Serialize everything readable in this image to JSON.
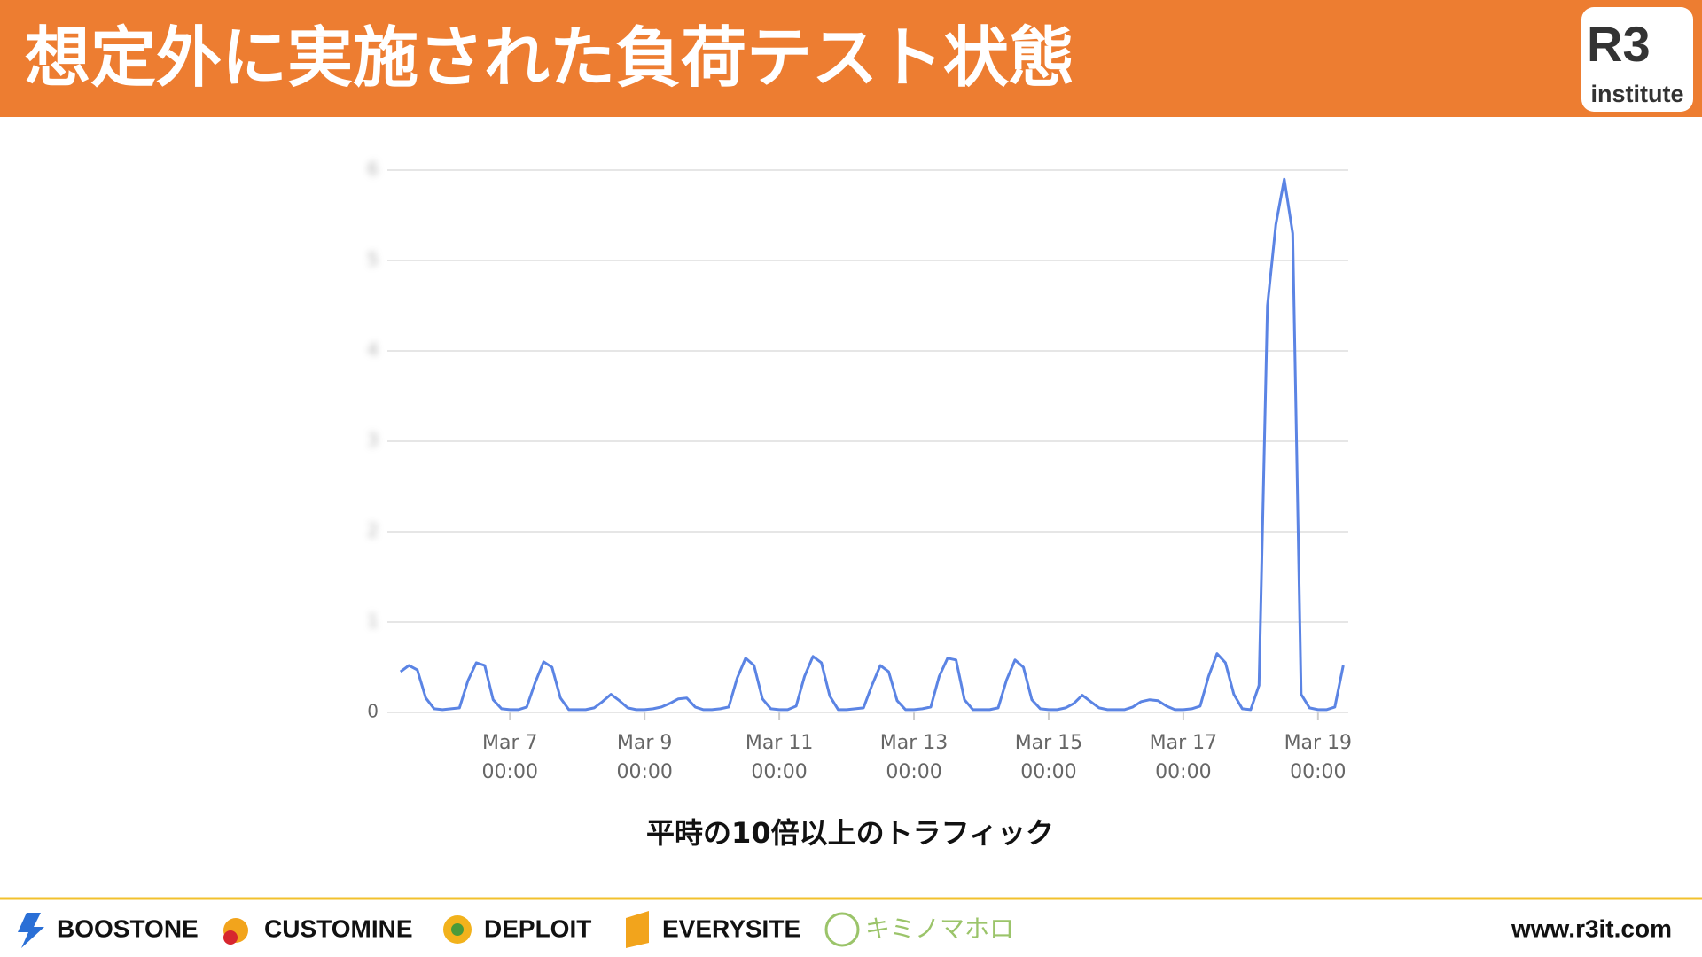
{
  "header": {
    "title": "想定外に実施された負荷テスト状態"
  },
  "logo": {
    "mark": "R3",
    "name": "institute"
  },
  "chart_data": {
    "type": "line",
    "color": "#5b84e4",
    "grid": true,
    "xlim": [
      5.18,
      19.45
    ],
    "ylim": [
      0,
      6
    ],
    "yticks": [
      0,
      1,
      2,
      3,
      4,
      5,
      6
    ],
    "xticks": [
      {
        "value": 7,
        "label": "Mar 7 00:00"
      },
      {
        "value": 9,
        "label": "Mar 9 00:00"
      },
      {
        "value": 11,
        "label": "Mar 11 00:00"
      },
      {
        "value": 13,
        "label": "Mar 13 00:00"
      },
      {
        "value": 15,
        "label": "Mar 15 00:00"
      },
      {
        "value": 17,
        "label": "Mar 17 00:00"
      },
      {
        "value": 19,
        "label": "Mar 19 00:00"
      }
    ],
    "x": [
      5.375,
      5.5,
      5.625,
      5.75,
      5.875,
      6,
      6.125,
      6.25,
      6.375,
      6.5,
      6.625,
      6.75,
      6.875,
      7,
      7.125,
      7.25,
      7.375,
      7.5,
      7.625,
      7.75,
      7.875,
      8,
      8.125,
      8.25,
      8.375,
      8.5,
      8.625,
      8.75,
      8.875,
      9,
      9.125,
      9.25,
      9.375,
      9.5,
      9.625,
      9.75,
      9.875,
      10,
      10.125,
      10.25,
      10.375,
      10.5,
      10.625,
      10.75,
      10.875,
      11,
      11.125,
      11.25,
      11.375,
      11.5,
      11.625,
      11.75,
      11.875,
      12,
      12.125,
      12.25,
      12.375,
      12.5,
      12.625,
      12.75,
      12.875,
      13,
      13.125,
      13.25,
      13.375,
      13.5,
      13.625,
      13.75,
      13.875,
      14,
      14.125,
      14.25,
      14.375,
      14.5,
      14.625,
      14.75,
      14.875,
      15,
      15.125,
      15.25,
      15.375,
      15.5,
      15.625,
      15.75,
      15.875,
      16,
      16.125,
      16.25,
      16.375,
      16.5,
      16.625,
      16.75,
      16.875,
      17,
      17.125,
      17.25,
      17.375,
      17.5,
      17.625,
      17.75,
      17.875,
      18,
      18.125,
      18.25,
      18.375,
      18.5,
      18.625,
      18.75,
      18.875,
      19,
      19.125,
      19.25,
      19.375
    ],
    "values": [
      0.45,
      0.52,
      0.47,
      0.16,
      0.04,
      0.03,
      0.04,
      0.05,
      0.35,
      0.55,
      0.52,
      0.14,
      0.04,
      0.03,
      0.03,
      0.06,
      0.33,
      0.56,
      0.5,
      0.16,
      0.03,
      0.03,
      0.03,
      0.05,
      0.12,
      0.2,
      0.13,
      0.05,
      0.03,
      0.03,
      0.04,
      0.06,
      0.1,
      0.15,
      0.16,
      0.06,
      0.03,
      0.03,
      0.04,
      0.06,
      0.38,
      0.6,
      0.52,
      0.15,
      0.04,
      0.03,
      0.03,
      0.07,
      0.4,
      0.62,
      0.55,
      0.18,
      0.03,
      0.03,
      0.04,
      0.05,
      0.3,
      0.52,
      0.45,
      0.13,
      0.03,
      0.03,
      0.04,
      0.06,
      0.4,
      0.6,
      0.58,
      0.14,
      0.03,
      0.03,
      0.03,
      0.05,
      0.36,
      0.58,
      0.5,
      0.14,
      0.04,
      0.03,
      0.03,
      0.05,
      0.1,
      0.19,
      0.12,
      0.05,
      0.03,
      0.03,
      0.03,
      0.06,
      0.12,
      0.14,
      0.13,
      0.07,
      0.03,
      0.03,
      0.04,
      0.07,
      0.4,
      0.65,
      0.55,
      0.2,
      0.04,
      0.03,
      0.3,
      4.5,
      5.4,
      5.9,
      5.3,
      0.2,
      0.05,
      0.03,
      0.03,
      0.06,
      0.52
    ]
  },
  "caption": "平時の10倍以上のトラフィック",
  "footer": {
    "brands": [
      "BOOSTONE",
      "CUSTOMINE",
      "DEPLOIT",
      "EVERYSITE",
      "キミノマホロ"
    ],
    "url": "www.r3it.com"
  }
}
